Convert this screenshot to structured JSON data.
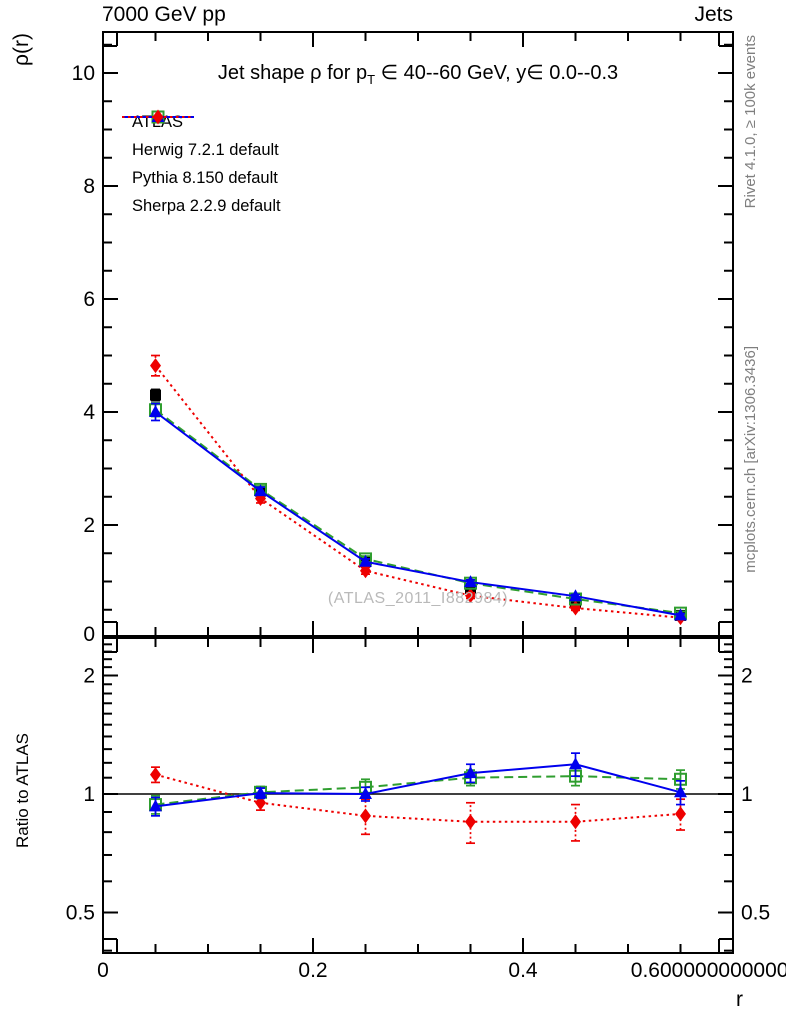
{
  "header": {
    "left": "7000 GeV pp",
    "right": "Jets"
  },
  "title": {
    "pre": "Jet shape ρ for p",
    "sub": "T",
    "post": " ∈ 40--60 GeV, y∈ 0.0--0.3"
  },
  "axes": {
    "main_y_title": "ρ(r)",
    "ratio_y_title": "Ratio to ATLAS",
    "x_title": "r"
  },
  "captions": {
    "side_top": "Rivet 4.1.0, ≥ 100k events",
    "side_bottom": "mcplots.cern.ch [arXiv:1306.3436]",
    "watermark": "(ATLAS_2011_I882984)"
  },
  "chart_data": {
    "main": {
      "type": "line",
      "title": "Jet shape ρ for p_T ∈ 40--60 GeV, y ∈ 0.0--0.3",
      "xlabel": "r",
      "ylabel": "ρ(r)",
      "xlim": [
        0,
        0.6
      ],
      "ylim": [
        0,
        10.7
      ],
      "xticks": [
        0,
        0.2,
        0.4,
        0.6
      ],
      "xtick_minor_step": 0.05,
      "yticks": [
        0,
        2,
        4,
        6,
        8,
        10
      ],
      "ytick_minor_step": 0.5,
      "grid": false,
      "legend_position": "upper-left",
      "x": [
        0.05,
        0.15,
        0.25,
        0.35,
        0.45,
        0.55
      ],
      "series": [
        {
          "name": "ATLAS",
          "color": "#000000",
          "marker": "square-filled",
          "line": "none",
          "values": [
            4.3,
            2.6,
            1.35,
            0.88,
            0.62,
            0.4
          ],
          "errors": [
            0.1,
            0.05,
            0.04,
            0.03,
            0.02,
            0.02
          ]
        },
        {
          "name": "Herwig 7.2.1 default",
          "color": "#2f9e2f",
          "marker": "square-open",
          "line": "dashed",
          "values": [
            4.04,
            2.63,
            1.4,
            0.97,
            0.69,
            0.44
          ],
          "errors": [
            0.12,
            0.06,
            0.05,
            0.04,
            0.03,
            0.03
          ]
        },
        {
          "name": "Pythia 8.150 default",
          "color": "#0000ee",
          "marker": "triangle-filled",
          "line": "solid",
          "values": [
            4.0,
            2.6,
            1.35,
            0.99,
            0.74,
            0.4
          ],
          "errors": [
            0.15,
            0.07,
            0.05,
            0.04,
            0.03,
            0.03
          ]
        },
        {
          "name": "Sherpa 2.2.9 default",
          "color": "#ee0000",
          "marker": "diamond-filled",
          "line": "dotted",
          "values": [
            4.82,
            2.47,
            1.19,
            0.75,
            0.53,
            0.36
          ],
          "errors": [
            0.18,
            0.08,
            0.06,
            0.05,
            0.04,
            0.03
          ]
        }
      ]
    },
    "ratio": {
      "type": "line",
      "ylabel": "Ratio to ATLAS",
      "yscale": "log",
      "ylim": [
        0.39,
        2.5
      ],
      "yticks": [
        0.5,
        1,
        2
      ],
      "reference_line": 1,
      "x": [
        0.05,
        0.15,
        0.25,
        0.35,
        0.45,
        0.55
      ],
      "series": [
        {
          "name": "Herwig 7.2.1 default",
          "color": "#2f9e2f",
          "marker": "square-open",
          "line": "dashed",
          "values": [
            0.94,
            1.01,
            1.04,
            1.1,
            1.11,
            1.09
          ],
          "errors": [
            0.05,
            0.035,
            0.05,
            0.05,
            0.06,
            0.06
          ]
        },
        {
          "name": "Pythia 8.150 default",
          "color": "#0000ee",
          "marker": "triangle-filled",
          "line": "solid",
          "values": [
            0.93,
            1.005,
            1.0,
            1.13,
            1.19,
            1.01
          ],
          "errors": [
            0.05,
            0.03,
            0.04,
            0.06,
            0.08,
            0.07
          ]
        },
        {
          "name": "Sherpa 2.2.9 default",
          "color": "#ee0000",
          "marker": "diamond-filled",
          "line": "dotted",
          "values": [
            1.12,
            0.95,
            0.88,
            0.85,
            0.85,
            0.89
          ],
          "errors": [
            0.05,
            0.04,
            0.09,
            0.1,
            0.09,
            0.08
          ]
        }
      ]
    }
  }
}
